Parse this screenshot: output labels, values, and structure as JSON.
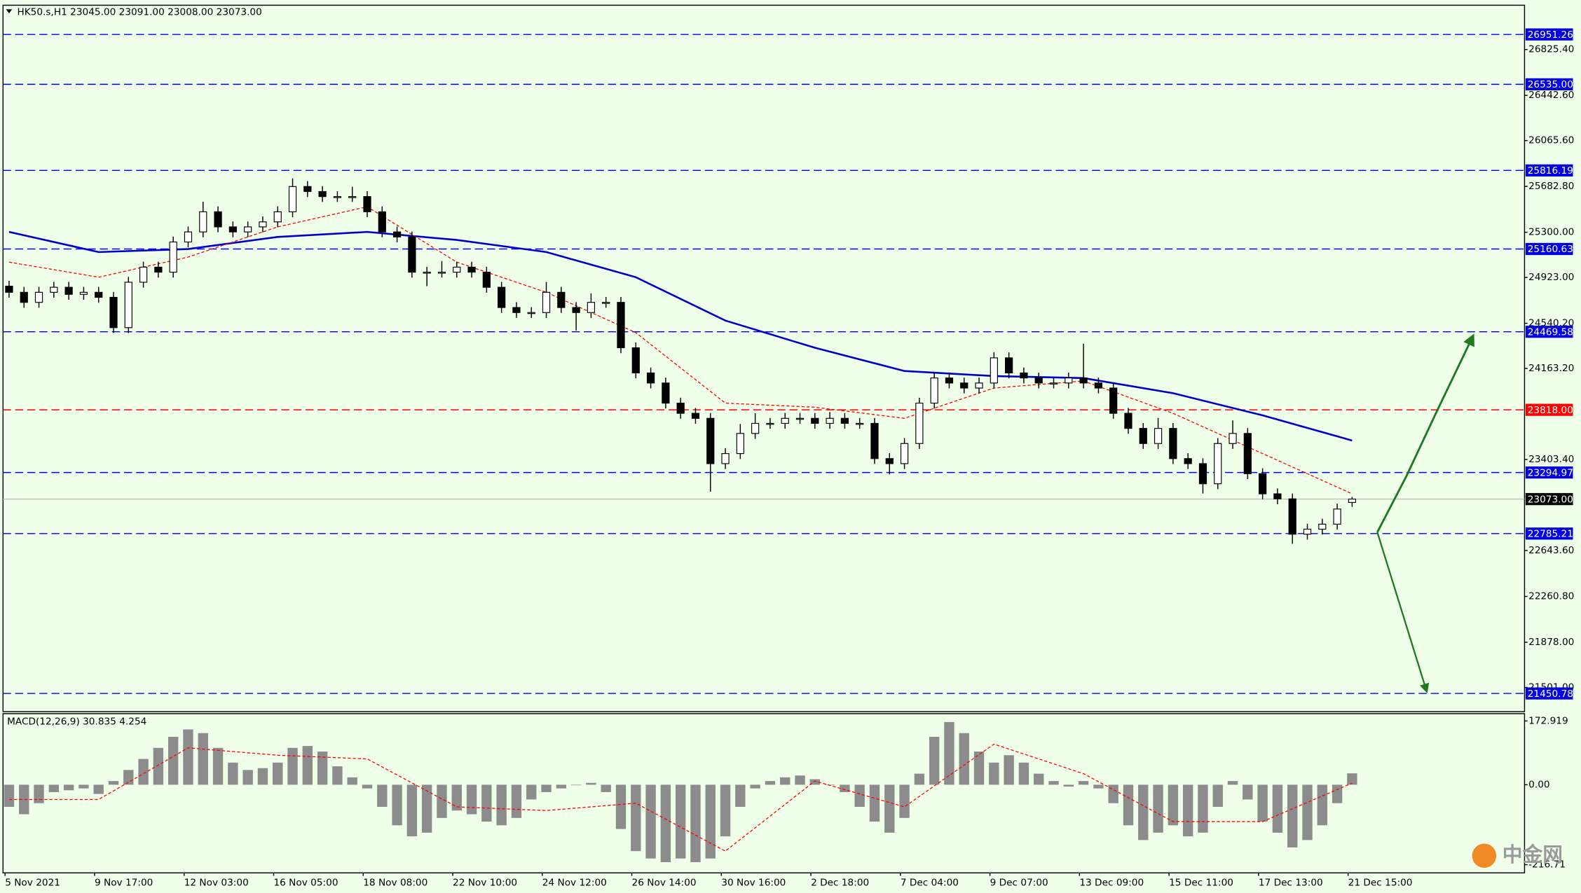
{
  "chart_data": {
    "type": "candlestick",
    "title": "HK50.s,H1  23045.00 23091.00 23008.00 23073.00",
    "categories": [
      "5 Nov 2021",
      null,
      null,
      null,
      null,
      null,
      "9 Nov 17:00",
      null,
      null,
      null,
      null,
      null,
      "12 Nov 03:00",
      null,
      null,
      null,
      null,
      null,
      "16 Nov 05:00",
      null,
      null,
      null,
      null,
      null,
      "18 Nov 08:00",
      null,
      null,
      null,
      null,
      null,
      "22 Nov 10:00",
      null,
      null,
      null,
      null,
      null,
      "24 Nov 12:00",
      null,
      null,
      null,
      null,
      null,
      "26 Nov 14:00",
      null,
      null,
      null,
      null,
      null,
      "30 Nov 16:00",
      null,
      null,
      null,
      null,
      null,
      "2 Dec 18:00",
      null,
      null,
      null,
      null,
      null,
      "7 Dec 04:00",
      null,
      null,
      null,
      null,
      null,
      "9 Dec 07:00",
      null,
      null,
      null,
      null,
      null,
      "13 Dec 09:00",
      null,
      null,
      null,
      null,
      null,
      "15 Dec 11:00",
      null,
      null,
      null,
      null,
      null,
      "17 Dec 13:00",
      null,
      null,
      null,
      null,
      null,
      "21 Dec 15:00"
    ],
    "open": [
      24850,
      24799,
      24715,
      24799,
      24841,
      24782,
      24799,
      24757,
      24504,
      24883,
      25009,
      24967,
      25219,
      25303,
      25471,
      25345,
      25303,
      25345,
      25387,
      25471,
      25682,
      25640,
      25598,
      25598,
      25598,
      25471,
      25303,
      25261,
      24967,
      24967,
      24967,
      25009,
      24967,
      24841,
      24672,
      24630,
      24630,
      24799,
      24672,
      24630,
      24715,
      24715,
      24336,
      24126,
      24042,
      23874,
      23789,
      23747,
      23369,
      23453,
      23621,
      23705,
      23705,
      23747,
      23747,
      23705,
      23747,
      23705,
      23705,
      23411,
      23369,
      23537,
      23874,
      24084,
      24042,
      24000,
      24042,
      24252,
      24126,
      24084,
      24042,
      24042,
      24084,
      24042,
      24000,
      23789,
      23663,
      23537,
      23663,
      23411,
      23369,
      23201,
      23537,
      23621,
      23285,
      23117,
      23075,
      22780,
      22822,
      22864,
      23045
    ],
    "high": [
      24895,
      24844,
      24844,
      24886,
      24886,
      24844,
      24844,
      24802,
      24928,
      25054,
      25054,
      25264,
      25348,
      25555,
      25516,
      25390,
      25390,
      25432,
      25516,
      25750,
      25727,
      25685,
      25643,
      25680,
      25643,
      25516,
      25348,
      25306,
      25012,
      25060,
      25054,
      25054,
      25012,
      24886,
      24717,
      24675,
      24885,
      24844,
      24717,
      24790,
      24760,
      24760,
      24381,
      24171,
      24087,
      23919,
      23834,
      23792,
      23498,
      23700,
      23790,
      23750,
      23792,
      23792,
      23792,
      23800,
      23792,
      23750,
      23750,
      23456,
      23582,
      23919,
      24129,
      24129,
      24087,
      24087,
      24300,
      24297,
      24171,
      24129,
      24087,
      24129,
      24370,
      24087,
      24045,
      23834,
      23708,
      23750,
      23708,
      23456,
      23414,
      23582,
      23730,
      23666,
      23330,
      23162,
      23120,
      22867,
      22909,
      23035,
      23091
    ],
    "low": [
      24754,
      24670,
      24670,
      24754,
      24737,
      24737,
      24712,
      24460,
      24459,
      24838,
      24922,
      24922,
      25174,
      25258,
      25300,
      25258,
      25258,
      25300,
      25342,
      25426,
      25595,
      25553,
      25553,
      25553,
      25426,
      25258,
      25216,
      24922,
      24850,
      24922,
      24922,
      24922,
      24796,
      24627,
      24585,
      24585,
      24585,
      24627,
      24480,
      24585,
      24670,
      24291,
      24081,
      23997,
      23829,
      23744,
      23702,
      23135,
      23324,
      23408,
      23576,
      23660,
      23660,
      23702,
      23660,
      23660,
      23660,
      23660,
      23366,
      23280,
      23324,
      23492,
      23829,
      23997,
      23955,
      23955,
      23997,
      24081,
      24039,
      23997,
      23997,
      23997,
      23997,
      23955,
      23744,
      23618,
      23492,
      23492,
      23366,
      23324,
      23120,
      23156,
      23492,
      23240,
      23072,
      23030,
      22700,
      22735,
      22777,
      22819,
      23008
    ],
    "close": [
      24799,
      24715,
      24799,
      24841,
      24782,
      24799,
      24757,
      24504,
      24883,
      25009,
      24967,
      25219,
      25303,
      25471,
      25345,
      25303,
      25345,
      25387,
      25471,
      25682,
      25640,
      25598,
      25598,
      25598,
      25471,
      25303,
      25261,
      24967,
      24967,
      24967,
      25009,
      24967,
      24841,
      24672,
      24630,
      24630,
      24799,
      24672,
      24630,
      24715,
      24715,
      24336,
      24126,
      24042,
      23874,
      23789,
      23747,
      23369,
      23453,
      23621,
      23705,
      23705,
      23747,
      23747,
      23705,
      23747,
      23705,
      23705,
      23411,
      23369,
      23537,
      23874,
      24084,
      24042,
      24000,
      24042,
      24252,
      24126,
      24084,
      24042,
      24042,
      24084,
      24042,
      24000,
      23789,
      23663,
      23537,
      23663,
      23411,
      23369,
      23201,
      23537,
      23621,
      23285,
      23117,
      23075,
      22780,
      22822,
      22864,
      22990,
      23073
    ],
    "ylim": [
      21299,
      27195
    ],
    "yticks": [
      {
        "value": 26825.4,
        "label": "26825.40"
      },
      {
        "value": 26442.6,
        "label": "26442.60"
      },
      {
        "value": 26065.6,
        "label": "26065.60"
      },
      {
        "value": 25682.8,
        "label": "25682.80"
      },
      {
        "value": 25300,
        "label": "25300.00"
      },
      {
        "value": 24923,
        "label": "24923.00"
      },
      {
        "value": 24540.2,
        "label": "24540.20"
      },
      {
        "value": 24163.2,
        "label": "24163.20"
      },
      {
        "value": 23403.4,
        "label": "23403.40"
      },
      {
        "value": 22643.6,
        "label": "22643.60"
      },
      {
        "value": 22260.8,
        "label": "22260.80"
      },
      {
        "value": 21878,
        "label": "21878.00"
      },
      {
        "value": 21501,
        "label": "21501.00"
      }
    ],
    "levels": [
      {
        "value": 26951.26,
        "color": "#0000ff",
        "box_color": "#0000e0",
        "dashed": true
      },
      {
        "value": 26535,
        "label": "26535.00",
        "color": "#0000ff",
        "box_color": "#0000e0",
        "dashed": true
      },
      {
        "value": 25816.19,
        "color": "#0000ff",
        "box_color": "#0000e0",
        "dashed": true
      },
      {
        "value": 25160.63,
        "color": "#0000ff",
        "box_color": "#0000e0",
        "dashed": true
      },
      {
        "value": 24469.58,
        "color": "#0000ff",
        "box_color": "#0000e0",
        "dashed": true
      },
      {
        "value": 23818,
        "label": "23818.00",
        "color": "#ff0000",
        "box_color": "#ff0000",
        "dashed": true
      },
      {
        "value": 23294.97,
        "color": "#0000ff",
        "box_color": "#0000e0",
        "dashed": true
      },
      {
        "value": 23073,
        "label": "23073.00",
        "color": "#c0c0c0",
        "box_color": "#000000",
        "dashed": false
      },
      {
        "value": 22785.21,
        "color": "#0000ff",
        "box_color": "#0000e0",
        "dashed": true
      },
      {
        "value": 21450.78,
        "color": "#0000ff",
        "box_color": "#0000e0",
        "dashed": true
      }
    ],
    "overlays": [
      {
        "color": "#0000cc",
        "dashed": false,
        "x": [
          0,
          6,
          12,
          18,
          24,
          30,
          36,
          42,
          48,
          54,
          60,
          66,
          72,
          78,
          84,
          90
        ],
        "values": [
          25303,
          25135,
          25160,
          25261,
          25303,
          25236,
          25135,
          24925,
          24563,
          24336,
          24142,
          24100,
          24083,
          23957,
          23772,
          23562
        ]
      },
      {
        "color": "#ff0000",
        "dashed": true,
        "x": [
          0,
          6,
          12,
          18,
          24,
          30,
          36,
          42,
          48,
          54,
          60,
          66,
          72,
          78,
          84,
          90
        ],
        "values": [
          25051,
          24925,
          25093,
          25345,
          25513,
          25051,
          24799,
          24462,
          23874,
          23840,
          23747,
          24000,
          24059,
          23789,
          23453,
          23117
        ]
      }
    ],
    "macd": {
      "label": "MACD(12,26,9) 30.835 4.254",
      "histogram": [
        -60,
        -80,
        -50,
        -20,
        -15,
        -10,
        -25,
        10,
        40,
        70,
        100,
        130,
        150,
        140,
        100,
        60,
        40,
        45,
        60,
        100,
        105,
        90,
        50,
        20,
        -10,
        -60,
        -110,
        -140,
        -130,
        -90,
        -70,
        -80,
        -100,
        -110,
        -90,
        -40,
        -20,
        -10,
        0,
        5,
        -20,
        -120,
        -180,
        -200,
        -210,
        -200,
        -210,
        -200,
        -140,
        -60,
        -10,
        10,
        20,
        25,
        15,
        0,
        -20,
        -60,
        -100,
        -130,
        -90,
        30,
        130,
        170,
        140,
        90,
        60,
        80,
        60,
        30,
        10,
        -5,
        10,
        -10,
        -50,
        -110,
        -150,
        -130,
        -110,
        -140,
        -130,
        -60,
        10,
        -40,
        -100,
        -130,
        -170,
        -150,
        -110,
        -50,
        30.835
      ],
      "histogram_color": "#8c8c8c",
      "signal": {
        "color": "#ff0000",
        "x": [
          0,
          6,
          12,
          18,
          24,
          30,
          36,
          42,
          48,
          54,
          60,
          66,
          72,
          78,
          84,
          90
        ],
        "values": [
          -40,
          -40,
          100,
          80,
          70,
          -60,
          -70,
          -50,
          -180,
          10,
          -60,
          110,
          30,
          -100,
          -100,
          4.254
        ]
      },
      "ylim": [
        -239,
        190
      ],
      "yticks": [
        172.919,
        {
          "value": 0,
          "label": "0.00"
        },
        -216.71
      ]
    },
    "watermark": "中金网"
  }
}
